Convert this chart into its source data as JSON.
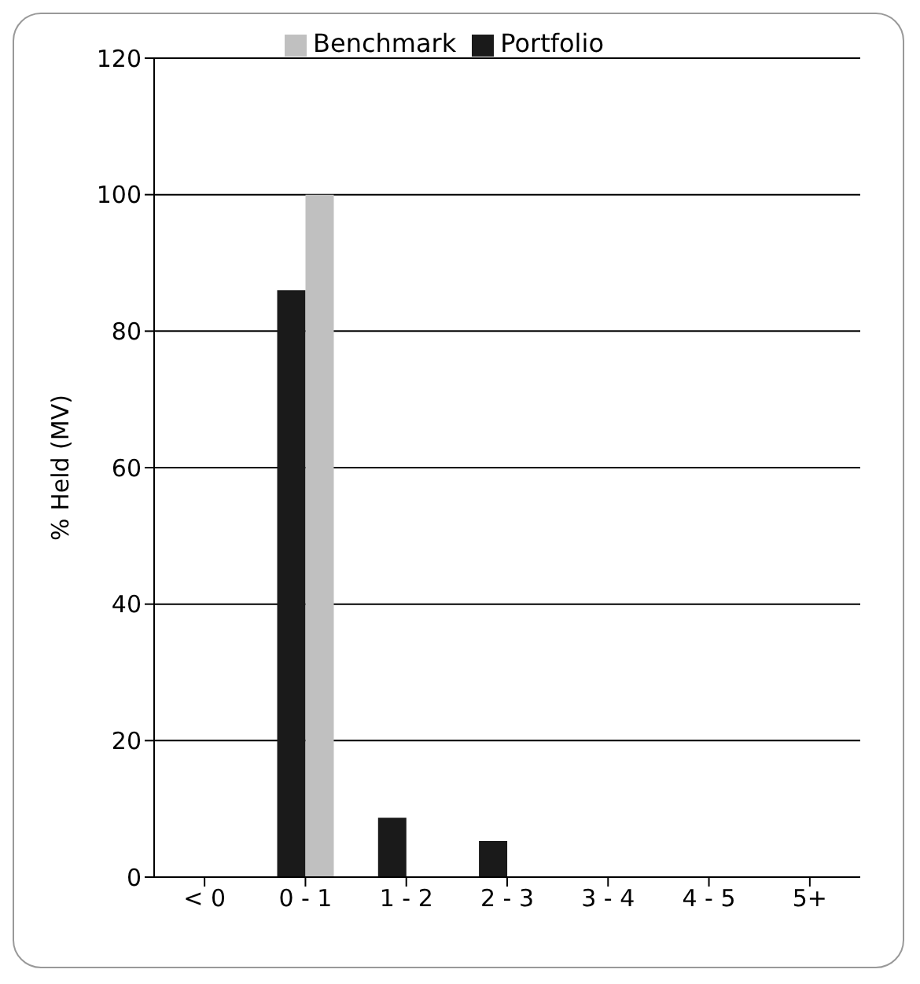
{
  "chart_data": {
    "type": "bar",
    "ylabel": "% Held (MV)",
    "categories": [
      "< 0",
      "0 - 1",
      "1 - 2",
      "2 - 3",
      "3 - 4",
      "4 - 5",
      "5+"
    ],
    "series": [
      {
        "name": "Portfolio",
        "color": "#1a1a1a",
        "values": [
          0,
          86,
          8.7,
          5.3,
          0,
          0,
          0
        ]
      },
      {
        "name": "Benchmark",
        "color": "#c0c0c0",
        "values": [
          0,
          100,
          0,
          0,
          0,
          0,
          0
        ]
      }
    ],
    "ylim": [
      0,
      120
    ],
    "yticks": [
      0,
      20,
      40,
      60,
      80,
      100,
      120
    ],
    "grid": "y",
    "legend": "top"
  }
}
